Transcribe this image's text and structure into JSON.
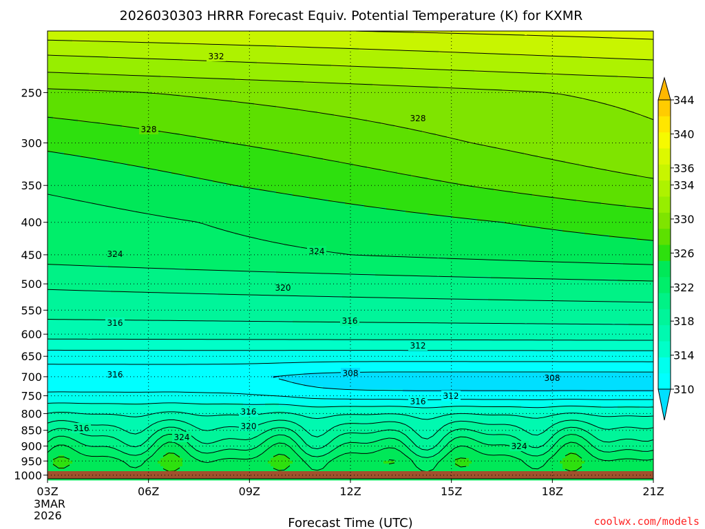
{
  "chart_data": {
    "type": "heatmap",
    "title": "2026030303 HRRR Forecast Equiv. Potential Temperature (K) for KXMR",
    "xlabel": "Forecast Time (UTC)",
    "ylabel": "",
    "x_ticks": [
      "03Z",
      "06Z",
      "09Z",
      "12Z",
      "15Z",
      "18Z",
      "21Z"
    ],
    "x_hours": [
      3,
      6,
      9,
      12,
      15,
      18,
      21
    ],
    "x_start_date": [
      "3MAR",
      "2026"
    ],
    "y_ticks": [
      250,
      300,
      350,
      400,
      450,
      500,
      550,
      600,
      650,
      700,
      750,
      800,
      850,
      900,
      950,
      1000
    ],
    "y_scale": "log",
    "y_range": [
      1013,
      200
    ],
    "colorbar": {
      "ticks": [
        310,
        314,
        318,
        322,
        326,
        330,
        334,
        336,
        340,
        344
      ],
      "levels": [
        310,
        312,
        314,
        316,
        318,
        320,
        322,
        324,
        326,
        328,
        330,
        332,
        334,
        336,
        338,
        340,
        342,
        344
      ],
      "colors": [
        "#00ffff",
        "#00ffee",
        "#00ffc8",
        "#00f9b0",
        "#00f59a",
        "#00f286",
        "#00ee6a",
        "#00e858",
        "#2ee00e",
        "#5de000",
        "#7fe400",
        "#97ee00",
        "#aef200",
        "#c8f500",
        "#ddf800",
        "#f6fa00",
        "#ffe600",
        "#ffcc00"
      ],
      "under_color": "#00dfff",
      "over_color": "#ffb700"
    },
    "profile": {
      "levels_hpa": [
        1000,
        950,
        900,
        850,
        800,
        750,
        700,
        650,
        600,
        550,
        500,
        450,
        400,
        350,
        300,
        250,
        200
      ],
      "theta_e_k": [
        325,
        325,
        322,
        319,
        316,
        313,
        311,
        313,
        317,
        319,
        321,
        324,
        325,
        327,
        329,
        331,
        338
      ]
    },
    "contour_labels": [
      "332",
      "328",
      "328",
      "324",
      "324",
      "320",
      "316",
      "316",
      "312",
      "316",
      "308",
      "308",
      "312",
      "316",
      "316",
      "320",
      "316",
      "324",
      "324"
    ],
    "ground_color": "#a0522d"
  },
  "credit": "coolwx.com/models"
}
